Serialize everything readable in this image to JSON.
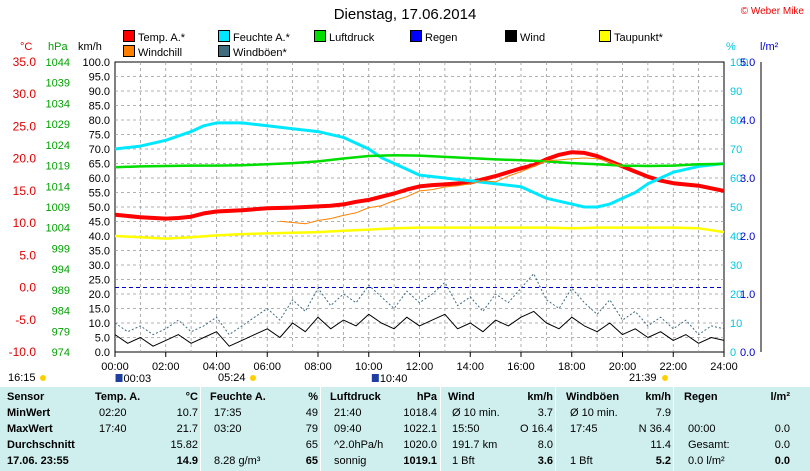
{
  "title": "Dienstag, 17.06.2014",
  "copyright": "© Weber Mike",
  "colors": {
    "temp": "#ff0000",
    "feuchte": "#00e8ff",
    "luftdruck": "#00dd00",
    "regen": "#0000ff",
    "wind": "#000000",
    "taupunkt": "#ffff00",
    "windchill": "#ff8000",
    "windboeen": "#406c80",
    "table_bg": "#cfeeee"
  },
  "legend": [
    {
      "label": "Temp. A.*",
      "color": "#ff0000"
    },
    {
      "label": "Feuchte A.*",
      "color": "#00e8ff"
    },
    {
      "label": "Luftdruck",
      "color": "#00dd00"
    },
    {
      "label": "Regen",
      "color": "#0000ff"
    },
    {
      "label": "Wind",
      "color": "#000000"
    },
    {
      "label": "Taupunkt*",
      "color": "#ffff00"
    },
    {
      "label": "Windchill",
      "color": "#ff8000"
    },
    {
      "label": "Windböen*",
      "color": "#406c80"
    }
  ],
  "axis_units": {
    "celsius": "°C",
    "hpa": "hPa",
    "kmh": "km/h",
    "percent": "%",
    "rain": "l/m²"
  },
  "chart_data": {
    "type": "line",
    "x_ticks": [
      "00:00",
      "02:00",
      "04:00",
      "06:00",
      "08:00",
      "10:00",
      "12:00",
      "14:00",
      "16:00",
      "18:00",
      "20:00",
      "22:00",
      "24:00"
    ],
    "xlim": [
      0,
      24
    ],
    "axes": {
      "celsius": {
        "ylim": [
          -10,
          35
        ],
        "ticks": [
          "35.0",
          "30.0",
          "25.0",
          "20.0",
          "15.0",
          "10.0",
          "5.0",
          "0.0",
          "-5.0",
          "-10.0"
        ]
      },
      "hpa": {
        "ylim": [
          974,
          1044
        ],
        "ticks": [
          "1044",
          "1039",
          "1034",
          "1029",
          "1024",
          "1019",
          "1014",
          "1009",
          "1004",
          "999",
          "994",
          "989",
          "984",
          "979",
          "974"
        ]
      },
      "kmh": {
        "ylim": [
          0,
          100
        ],
        "ticks": [
          "100.0",
          "95.0",
          "90.0",
          "85.0",
          "80.0",
          "75.0",
          "70.0",
          "65.0",
          "60.0",
          "55.0",
          "50.0",
          "45.0",
          "40.0",
          "35.0",
          "30.0",
          "25.0",
          "20.0",
          "15.0",
          "10.0",
          "5.0",
          "0.0"
        ]
      },
      "percent": {
        "ylim": [
          0,
          100
        ],
        "ticks": [
          "100",
          "90",
          "80",
          "70",
          "60",
          "50",
          "40",
          "30",
          "20",
          "10",
          "0"
        ]
      },
      "rain": {
        "ylim": [
          0,
          5
        ],
        "ticks": [
          "5.0",
          "4.0",
          "3.0",
          "2.0",
          "1.0",
          "0.0"
        ]
      }
    },
    "series": [
      {
        "name": "Temp. A.*",
        "axis": "celsius",
        "x": [
          0,
          1,
          2,
          2.5,
          3,
          3.5,
          4,
          5,
          6,
          7,
          8,
          8.5,
          9,
          9.5,
          10,
          10.5,
          11,
          11.5,
          12,
          12.5,
          13,
          14,
          14.5,
          15,
          15.5,
          16,
          16.5,
          17,
          17.5,
          18,
          18.5,
          19,
          19.5,
          20,
          20.5,
          21,
          21.5,
          22,
          23,
          24
        ],
        "y": [
          11.3,
          10.9,
          10.7,
          10.8,
          11.0,
          11.5,
          11.8,
          12.0,
          12.3,
          12.4,
          12.6,
          12.7,
          12.9,
          13.3,
          13.6,
          14.1,
          14.6,
          15.2,
          15.7,
          15.9,
          16.0,
          16.3,
          16.8,
          17.3,
          17.9,
          18.5,
          19.0,
          19.9,
          20.6,
          21.0,
          20.9,
          20.4,
          19.6,
          18.8,
          18.0,
          17.2,
          16.6,
          16.2,
          15.8,
          15.0
        ]
      },
      {
        "name": "Feuchte A.*",
        "axis": "percent",
        "x": [
          0,
          1,
          2,
          3,
          3.5,
          4,
          5,
          6,
          7,
          8,
          9,
          9.5,
          10,
          10.5,
          11,
          11.5,
          12,
          13,
          14,
          15,
          16,
          16.5,
          17,
          17.5,
          18,
          18.5,
          19,
          19.5,
          20,
          20.5,
          21,
          21.5,
          22,
          23,
          24
        ],
        "y": [
          70,
          71,
          73,
          76,
          78,
          79,
          79,
          78,
          77,
          76,
          74,
          72,
          70,
          67,
          65,
          63,
          61,
          60,
          59,
          58,
          57,
          55,
          53,
          52,
          51,
          50,
          50,
          51,
          53,
          55,
          58,
          60,
          62,
          64,
          65
        ]
      },
      {
        "name": "Luftdruck",
        "axis": "hpa",
        "x": [
          0,
          1,
          2,
          3,
          4,
          5,
          6,
          7,
          8,
          9,
          10,
          11,
          12,
          13,
          14,
          15,
          16,
          17,
          18,
          19,
          20,
          21,
          22,
          23,
          24
        ],
        "y": [
          1018.6,
          1018.8,
          1018.9,
          1019.0,
          1019.0,
          1019.1,
          1019.3,
          1019.6,
          1020.0,
          1020.7,
          1021.3,
          1021.5,
          1021.4,
          1021.1,
          1020.8,
          1020.5,
          1020.3,
          1020.0,
          1019.6,
          1019.3,
          1019.0,
          1018.9,
          1019.0,
          1019.3,
          1019.4
        ]
      },
      {
        "name": "Taupunkt*",
        "axis": "celsius",
        "x": [
          0,
          1,
          2,
          3,
          4,
          5,
          6,
          7,
          8,
          9,
          10,
          11,
          12,
          13,
          14,
          15,
          16,
          17,
          18,
          19,
          20,
          21,
          22,
          23,
          24
        ],
        "y": [
          8.0,
          7.8,
          7.6,
          7.8,
          8.1,
          8.3,
          8.4,
          8.5,
          8.6,
          8.8,
          9.0,
          9.2,
          9.3,
          9.3,
          9.3,
          9.3,
          9.3,
          9.3,
          9.2,
          9.3,
          9.3,
          9.3,
          9.3,
          9.2,
          8.6
        ]
      },
      {
        "name": "Windchill",
        "axis": "celsius",
        "x": [
          6.5,
          7,
          7.5,
          8,
          8.5,
          9,
          9.5,
          10,
          10.5,
          11,
          11.5,
          12,
          12.5,
          13,
          13.5,
          14,
          14.5,
          15,
          15.5,
          16,
          16.5,
          17,
          17.5,
          18,
          18.5,
          19,
          19.5,
          20
        ],
        "y": [
          10.3,
          10.1,
          9.9,
          10.4,
          10.7,
          11.2,
          11.6,
          12.4,
          12.7,
          13.5,
          14.1,
          15.0,
          15.2,
          15.6,
          15.8,
          16.1,
          16.6,
          16.4,
          17.3,
          18.0,
          18.8,
          19.7,
          19.8,
          20.0,
          20.1,
          20.0,
          19.5,
          18.7
        ]
      },
      {
        "name": "Wind",
        "axis": "kmh",
        "x": [
          0,
          0.5,
          1,
          1.5,
          2,
          2.5,
          3,
          3.5,
          4,
          4.5,
          5,
          5.5,
          6,
          6.5,
          7,
          7.5,
          8,
          8.5,
          9,
          9.5,
          10,
          10.5,
          11,
          11.5,
          12,
          12.5,
          13,
          13.5,
          14,
          14.5,
          15,
          15.5,
          16,
          16.5,
          17,
          17.5,
          18,
          18.5,
          19,
          19.5,
          20,
          20.5,
          21,
          21.5,
          22,
          22.5,
          23,
          23.5,
          24
        ],
        "y": [
          6,
          3,
          5,
          2,
          4,
          6,
          3,
          5,
          7,
          2,
          4,
          6,
          8,
          5,
          10,
          7,
          12,
          8,
          11,
          9,
          13,
          10,
          8,
          12,
          9,
          11,
          13,
          8,
          10,
          7,
          11,
          9,
          12,
          14,
          10,
          8,
          12,
          9,
          7,
          10,
          6,
          8,
          5,
          7,
          4,
          6,
          3,
          5,
          4
        ]
      },
      {
        "name": "Windböen*",
        "axis": "kmh",
        "x": [
          0,
          0.5,
          1,
          1.5,
          2,
          2.5,
          3,
          3.5,
          4,
          4.5,
          5,
          5.5,
          6,
          6.5,
          7,
          7.5,
          8,
          8.5,
          9,
          9.5,
          10,
          10.5,
          11,
          11.5,
          12,
          12.5,
          13,
          13.5,
          14,
          14.5,
          15,
          15.5,
          16,
          16.5,
          17,
          17.5,
          18,
          18.5,
          19,
          19.5,
          20,
          20.5,
          21,
          21.5,
          22,
          22.5,
          23,
          23.5,
          24
        ],
        "y": [
          10,
          7,
          9,
          6,
          8,
          11,
          7,
          9,
          12,
          6,
          9,
          12,
          15,
          11,
          18,
          14,
          22,
          16,
          20,
          17,
          23,
          19,
          15,
          21,
          17,
          20,
          24,
          16,
          19,
          14,
          20,
          17,
          22,
          27,
          18,
          15,
          22,
          17,
          13,
          18,
          11,
          14,
          9,
          12,
          8,
          11,
          6,
          9,
          8
        ]
      }
    ],
    "reference_line": {
      "axis": "celsius",
      "value": 0.0
    }
  },
  "sun": {
    "sunrise": "05:24",
    "sunset": "21:39",
    "dawn": "16:15"
  },
  "bottom_times": [
    {
      "x": 0.1,
      "label": "00:03"
    },
    {
      "x": 10.2,
      "label": "10:40"
    }
  ],
  "table": {
    "headers": [
      "Sensor",
      "Temp. A.",
      "°C",
      "Feuchte A.",
      "%",
      "Luftdruck",
      "hPa",
      "Wind",
      "km/h",
      "Windböen",
      "km/h",
      "Regen",
      "l/m²"
    ],
    "rows": [
      {
        "label": "MinWert",
        "c": [
          "02:20",
          "10.7",
          "17:35",
          "49",
          "21:40",
          "1018.4",
          "Ø 10 min.",
          "3.7",
          "Ø 10 min.",
          "7.9",
          "",
          ""
        ]
      },
      {
        "label": "MaxWert",
        "c": [
          "17:40",
          "21.7",
          "03:20",
          "79",
          "09:40",
          "1022.1",
          "15:50",
          "O 16.4",
          "17:45",
          "N 36.4",
          "00:00",
          "0.0"
        ]
      },
      {
        "label": "Durchschnitt",
        "c": [
          "",
          "15.82",
          "",
          "65",
          "^2.0hPa/h",
          "1020.0",
          "191.7 km",
          "8.0",
          "",
          "11.4",
          "Gesamt:",
          "0.0"
        ]
      },
      {
        "label": "17.06. 23:55",
        "c": [
          "",
          "14.9",
          "8.28 g/m³",
          "65",
          "sonnig",
          "1019.1",
          "1 Bft",
          "3.6",
          "1 Bft",
          "5.2",
          "0.0 l/m²",
          "0.0"
        ]
      }
    ]
  }
}
